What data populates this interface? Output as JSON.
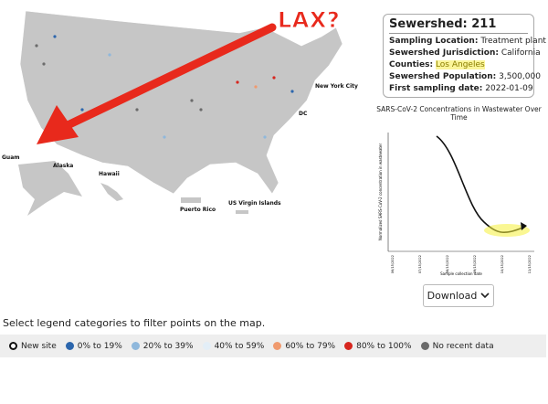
{
  "annotation": "LAX?",
  "map_labels": [
    "New York City",
    "DC",
    "Guam",
    "Alaska",
    "Hawaii",
    "Puerto Rico",
    "US Virgin Islands"
  ],
  "info": {
    "title": "Sewershed: 211",
    "fields": [
      {
        "label": "Sampling Location:",
        "value": "Treatment plant"
      },
      {
        "label": "Sewershed Jurisdiction:",
        "value": "California"
      },
      {
        "label": "Counties:",
        "value": "Los Angeles"
      },
      {
        "label": "Sewershed Population:",
        "value": "3,500,000"
      },
      {
        "label": "First sampling date:",
        "value": "2022-01-09"
      }
    ]
  },
  "chart": {
    "title": "SARS-CoV-2 Concentrations in Wastewater Over Time",
    "y_label": "Normalized SARS-CoV-2 concentration in wastewater",
    "x_label": "Sample collection date",
    "x_ticks": [
      "06/15/2022",
      "07/15/2022",
      "08/15/2022",
      "09/15/2022",
      "10/15/2022",
      "11/15/2022"
    ]
  },
  "download": "Download",
  "instruction": "Select legend categories to filter points on the map.",
  "legend": [
    {
      "label": "New site",
      "color": "#ffffff"
    },
    {
      "label": "0% to 19%",
      "color": "#2c66ad"
    },
    {
      "label": "20% to 39%",
      "color": "#8fb8dc"
    },
    {
      "label": "40% to 59%",
      "color": "#e3eef7"
    },
    {
      "label": "60% to 79%",
      "color": "#f09a6e"
    },
    {
      "label": "80% to 100%",
      "color": "#d7261e"
    },
    {
      "label": "No recent data",
      "color": "#6b6b6b"
    }
  ]
}
